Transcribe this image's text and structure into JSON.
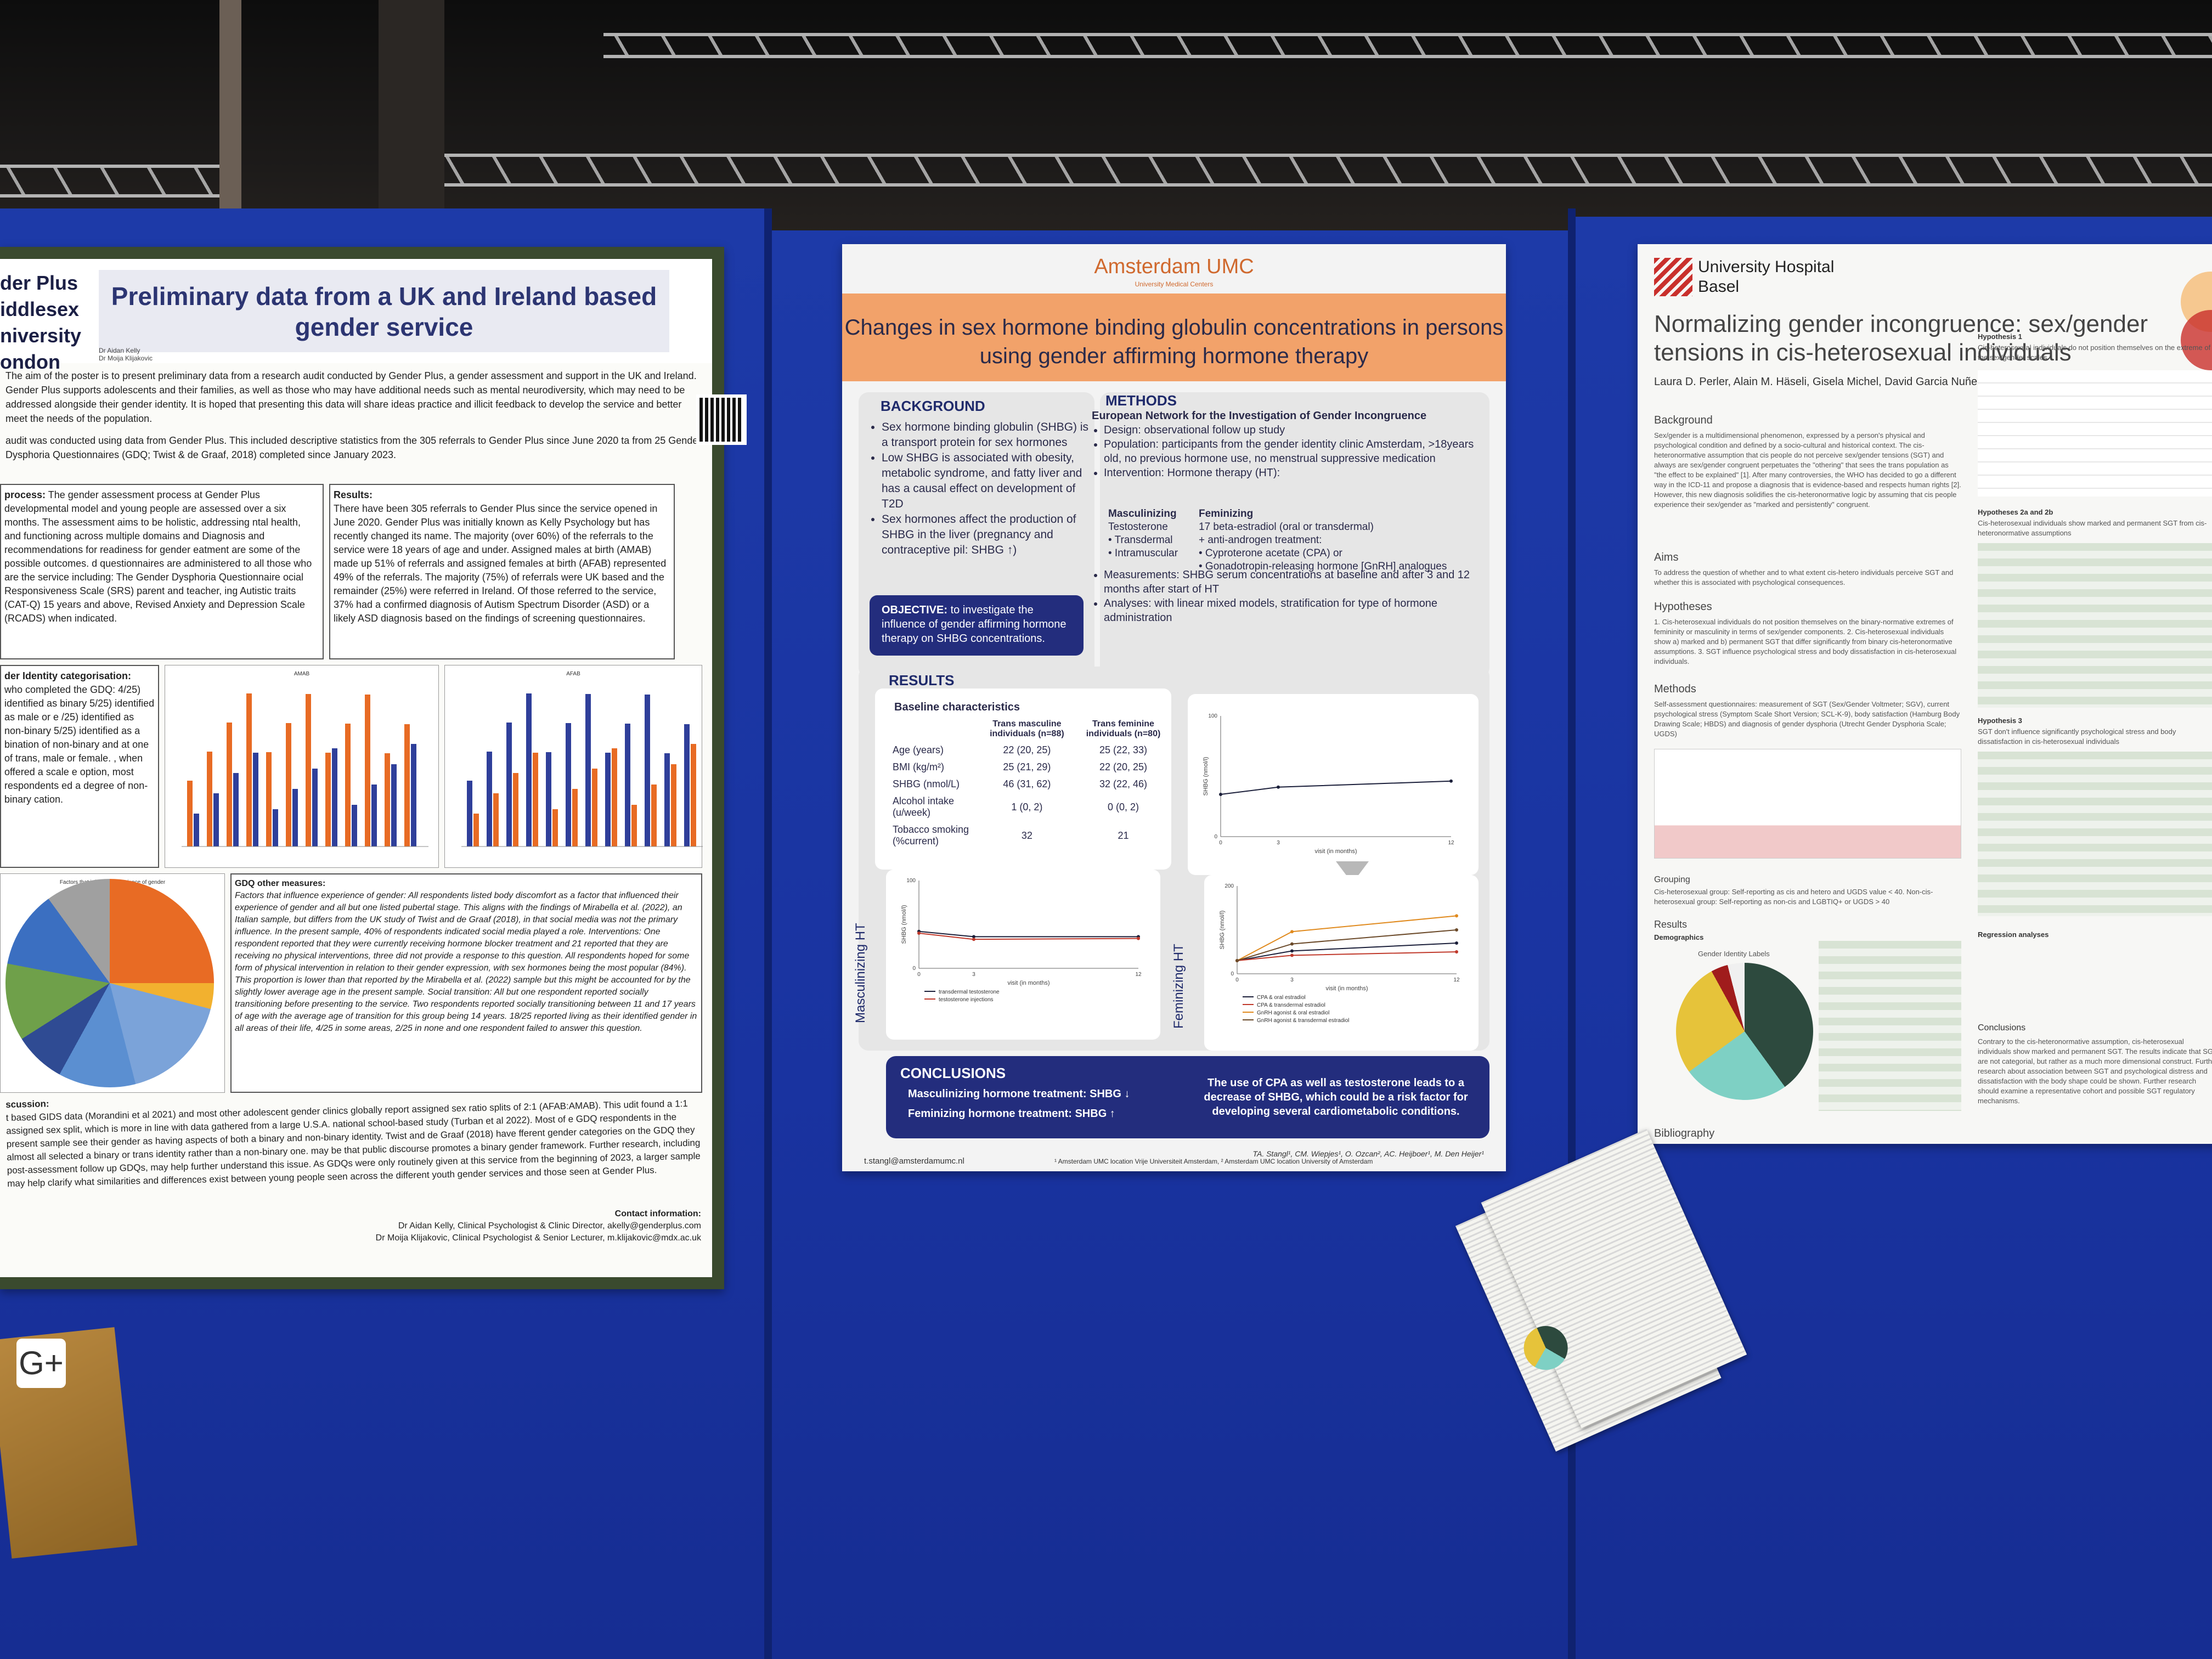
{
  "left_poster": {
    "logo_line1": "der Plus",
    "logo_line2": "iddlesex",
    "logo_line3": "niversity",
    "logo_line4": "ondon",
    "title": "Preliminary data from a UK and Ireland based gender service",
    "byline": "Dr Aidan Kelly\nDr Moija Klijakovic",
    "intro": "The aim of the poster is to present preliminary data from a research audit conducted by Gender Plus, a gender assessment and support in the UK and Ireland. Gender Plus supports adolescents and their families, as well as those who may have additional needs such as mental neurodiversity, which may need to be addressed alongside their gender identity. It is hoped that presenting this data will share ideas practice and illicit feedback to develop the service and better meet the needs of the population.",
    "method": "audit was conducted using data from Gender Plus. This included descriptive statistics from the 305 referrals to Gender Plus since June 2020 ta from 25 Gender Dysphoria Questionnaires (GDQ; Twist & de Graaf, 2018) completed since January 2023.",
    "process_heading": "process:",
    "process_text": "The gender assessment process at Gender Plus developmental model and young people are assessed over a six months. The assessment aims to be holistic, addressing ntal health, and functioning across multiple domains and Diagnosis and recommendations for readiness for gender eatment are some of the possible outcomes. d questionnaires are administered to all those who are the service including: The Gender Dysphoria Questionnaire ocial Responsiveness Scale (SRS) parent and teacher, ing Autistic traits (CAT-Q) 15 years and above, Revised Anxiety and Depression Scale (RCADS) when indicated.",
    "results_heading": "Results:",
    "results_text": "There have been 305 referrals to Gender Plus since the service opened in June 2020. Gender Plus was initially known as Kelly Psychology but has recently changed its name. The majority (over 60%) of the referrals to the service were 18 years of age and under. Assigned males at birth (AMAB) made up 51% of referrals and assigned females at birth (AFAB) represented 49% of the referrals. The majority (75%) of referrals were UK based and the remainder (25%) were referred in Ireland. Of those referred to the service, 37% had a confirmed diagnosis of Autism Spectrum Disorder (ASD) or a likely ASD diagnosis based on the findings of screening questionnaires.",
    "identity_heading": "der Identity categorisation:",
    "identity_text": "who completed the GDQ: 4/25) identified as binary 5/25) identified as male or e /25) identified as non-binary 5/25) identified as a bination of non-binary and at one of trans, male or female. , when offered a scale e option, most respondents ed a degree of non-binary cation.",
    "chart1_title": "AMAB",
    "chart2_title": "AFAB",
    "pie_title": "Factors that influence experience of gender",
    "gdq_heading": "GDQ other measures:",
    "gdq_text": "Factors that influence experience of gender: All respondents listed body discomfort as a factor that influenced their experience of gender and all but one listed pubertal stage. This aligns with the findings of Mirabella et al. (2022), an Italian sample, but differs from the UK study of Twist and de Graaf (2018), in that social media was not the primary influence. In the present sample, 40% of respondents indicated social media played a role. Interventions: One respondent reported that they were currently receiving hormone blocker treatment and 21 reported that they are receiving no physical interventions, three did not provide a response to this question. All respondents hoped for some form of physical intervention in relation to their gender expression, with sex hormones being the most popular (84%). This proportion is lower than that reported by the Mirabella et al. (2022) sample but this might be accounted for by the slightly lower average age in the present sample. Social transition: All but one respondent reported socially transitioning before presenting to the service. Two respondents reported socially transitioning between 11 and 17 years of age with the average age of transition for this group being 14 years. 18/25 reported living as their identified gender in all areas of their life, 4/25 in some areas, 2/25 in none and one respondent failed to answer this question.",
    "discussion_heading": "scussion:",
    "discussion_text": "t based GIDS data (Morandini et al 2021) and most other adolescent gender clinics globally report assigned sex ratio splits of 2:1 (AFAB:AMAB). This udit found a 1:1 assigned sex split, which is more in line with data gathered from a large U.S.A. national school-based study (Turban et al 2022). Most of e GDQ respondents in the present sample see their gender as having aspects of both a binary and non-binary identity. Twist and de Graaf (2018) have fferent gender categories on the GDQ they almost all selected a binary or trans identity rather than a non-binary one. may be that public discourse promotes a binary gender framework. Further research, including post-assessment follow up GDQs, may help further understand this issue. As GDQs were only routinely given at this service from the beginning of 2023, a larger sample may help clarify what similarities and differences exist between young people seen across the different youth gender services and those seen at Gender Plus.",
    "contact_heading": "Contact information:",
    "contact_1": "Dr Aidan Kelly, Clinical Psychologist & Clinic Director, akelly@genderplus.com",
    "contact_2": "Dr Moija Klijakovic, Clinical Psychologist & Senior Lecturer, m.klijakovic@mdx.ac.uk"
  },
  "mid_poster": {
    "logo": "Amsterdam UMC",
    "logo_sub": "University Medical Centers",
    "title": "Changes in sex hormone binding globulin concentrations in persons using gender affirming hormone therapy",
    "background_heading": "BACKGROUND",
    "background_items": [
      "Sex hormone binding globulin (SHBG) is a transport protein for sex hormones",
      "Low SHBG is associated with obesity, metabolic syndrome, and fatty liver and has a causal effect on development of T2D",
      "Sex hormones affect the production of SHBG in the liver (pregnancy and contraceptive pil: SHBG ↑)"
    ],
    "objective_label": "OBJECTIVE:",
    "objective_text": "to investigate the influence of gender affirming hormone therapy on SHBG concentrations.",
    "methods_heading": "METHODS",
    "methods_subheading": "European Network for the Investigation of Gender Incongruence",
    "methods_design": "Design: observational follow up study",
    "methods_population": "Population: participants from the gender identity clinic Amsterdam, >18years old, no previous hormone use, no menstrual suppressive medication",
    "methods_intervention": "Intervention: Hormone therapy (HT):",
    "masc_heading": "Masculinizing",
    "masc_items": [
      "Testosterone",
      "• Transdermal",
      "• Intramuscular"
    ],
    "fem_heading": "Feminizing",
    "fem_items": [
      "17 beta-estradiol (oral or transdermal)",
      "+ anti-androgen treatment:",
      "• Cyproterone acetate (CPA) or",
      "• Gonadotropin-releasing hormone [GnRH] analogues"
    ],
    "methods_measurements": "Measurements: SHBG serum concentrations at baseline and after 3 and 12 months after start of HT",
    "methods_analyses": "Analyses: with linear mixed models, stratification for type of hormone administration",
    "results_heading": "RESULTS",
    "baseline_heading": "Baseline characteristics",
    "table_header": [
      "",
      "Trans masculine individuals (n=88)",
      "Trans feminine individuals (n=80)"
    ],
    "table_rows": [
      [
        "Age (years)",
        "22 (20, 25)",
        "25 (22, 33)"
      ],
      [
        "BMI (kg/m²)",
        "25 (21, 29)",
        "22 (20, 25)"
      ],
      [
        "SHBG (nmol/L)",
        "46 (31, 62)",
        "32 (22, 46)"
      ],
      [
        "Alcohol intake (u/week)",
        "1 (0, 2)",
        "0 (0, 2)"
      ],
      [
        "Tobacco smoking (%current)",
        "32",
        "21"
      ]
    ],
    "masc_chart_label": "Masculinizing HT",
    "fem_chart_label": "Feminizing HT",
    "chart_ylabel": "SHBG (nmol/l)",
    "chart_xlabel": "visit (in months)",
    "masc_legend": [
      "transdermal testosterone",
      "testosterone injections"
    ],
    "fem_legend": [
      "CPA & oral estradiol",
      "CPA & transdermal estradiol",
      "GnRH agonist & oral estradiol",
      "GnRH agonist & transdermal estradiol"
    ],
    "conclusions_heading": "CONCLUSIONS",
    "conclusion_1": "Masculinizing hormone treatment: SHBG ↓",
    "conclusion_2": "Feminizing hormone treatment: SHBG ↑",
    "conclusion_3": "The use of CPA as well as testosterone leads to a decrease of SHBG, which could be a risk factor for developing several cardiometabolic conditions.",
    "footer_authors": "TA. Stangl¹, CM. Wiepjes¹, O. Ozcan², AC. Heijboer¹, M. Den Heijer¹",
    "footer_email": "t.stangl@amsterdamumc.nl",
    "footer_affil": "¹ Amsterdam UMC location Vrije Universiteit Amsterdam, ² Amsterdam UMC location University of Amsterdam"
  },
  "right_poster": {
    "logo": "University Hospital\nBasel",
    "title": "Normalizing gender incongruence: sex/gender tensions in cis-heterosexual individuals",
    "authors": "Laura D. Perler, Alain M. Häseli, Gisela Michel, David Garcia Nuñez",
    "background_heading": "Background",
    "background_text": "Sex/gender is a multidimensional phenomenon, expressed by a person's physical and psychological condition and defined by a socio-cultural and historical context. The cis-heteronormative assumption that cis people do not perceive sex/gender tensions (SGT) and always are sex/gender congruent perpetuates the \"othering\" that sees the trans population as \"the effect to be explained\" [1]. After many controversies, the WHO has decided to go a different way in the ICD-11 and propose a diagnosis that is evidence-based and respects human rights [2]. However, this new diagnosis solidifies the cis-heteronormative logic by assuming that cis people experience their sex/gender as \"marked and persistently\" congruent.",
    "aims_heading": "Aims",
    "aims_text": "To address the question of whether and to what extent cis-hetero individuals perceive SGT and whether this is associated with psychological consequences.",
    "hypotheses_heading": "Hypotheses",
    "hypotheses_text": "1. Cis-heterosexual individuals do not position themselves on the binary-normative extremes of femininity or masculinity in terms of sex/gender components. 2. Cis-heterosexual individuals show a) marked and b) permanent SGT that differ significantly from binary cis-heteronormative assumptions. 3. SGT influence psychological stress and body dissatisfaction in cis-heterosexual individuals.",
    "methods_heading": "Methods",
    "methods_text": "Self-assessment questionnaires: measurement of SGT (Sex/Gender Voltmeter; SGV), current psychological stress (Symptom Scale Short Version; SCL-K-9), body satisfaction (Hamburg Body Drawing Scale; HBDS) and diagnosis of gender dysphoria (Utrecht Gender Dysphoria Scale; UGDS)",
    "grouping_heading": "Grouping",
    "grouping_text": "Cis-heterosexual group: Self-reporting as cis and hetero and UGDS value < 40. Non-cis-heterosexual group: Self-reporting as non-cis and LGBTIQ+ or UGDS > 40",
    "results_heading": "Results",
    "demographics_heading": "Demographics",
    "pie_title": "Gender Identity Labels",
    "h1_heading": "Hypothesis 1",
    "h1_text": "Cis-heterosexual individuals do not position themselves on the extreme of the sex/gender scales",
    "h2_heading": "Hypotheses 2a and 2b",
    "h2_text": "Cis-heterosexual individuals show marked and permanent SGT from cis-heteronormative assumptions",
    "h3_heading": "Hypothesis 3",
    "h3_text": "SGT don't influence significantly psychological stress and body dissatisfaction in cis-heterosexual individuals",
    "regression_heading": "Regression analyses",
    "conclusions_heading": "Conclusions",
    "conclusions_text": "Contrary to the cis-heteronormative assumption, cis-heterosexual individuals show marked and permanent SGT. The results indicate that SGT are not categorial, but rather as a much more dimensional construct. Further research about association between SGT and psychological distress and dissatisfaction with the body shape could be shown. Further research should examine a representative cohort and possible SGT regulatory mechanisms.",
    "bibliography_heading": "Bibliography"
  },
  "envelope_badge": "G+",
  "colors": {
    "board_blue": "#1933a0",
    "umc_orange": "#f2a26a",
    "umc_navy": "#232d7d",
    "basel_red": "#c9302c"
  },
  "chart_data": [
    {
      "type": "line",
      "title": "",
      "xlabel": "visit (in months)",
      "ylabel": "SHBG (nmol/l)",
      "x": [
        0,
        3,
        12
      ],
      "ylim": [
        0,
        100
      ],
      "series": [
        {
          "name": "",
          "values": [
            35,
            41,
            46
          ]
        }
      ]
    },
    {
      "type": "line",
      "title": "",
      "xlabel": "visit (in months)",
      "ylabel": "SHBG (nmol/l)",
      "x": [
        0,
        3,
        12
      ],
      "ylim": [
        0,
        100
      ],
      "series": [
        {
          "name": "transdermal testosterone",
          "values": [
            42,
            36,
            36
          ]
        },
        {
          "name": "testosterone injections",
          "values": [
            40,
            33,
            34
          ]
        }
      ]
    },
    {
      "type": "line",
      "title": "",
      "xlabel": "visit (in months)",
      "ylabel": "SHBG (nmol/l)",
      "x": [
        0,
        3,
        12
      ],
      "ylim": [
        0,
        200
      ],
      "series": [
        {
          "name": "CPA & oral estradiol",
          "values": [
            30,
            52,
            70
          ]
        },
        {
          "name": "CPA & transdermal estradiol",
          "values": [
            30,
            42,
            50
          ]
        },
        {
          "name": "GnRH agonist & oral estradiol",
          "values": [
            30,
            96,
            132
          ]
        },
        {
          "name": "GnRH agonist & transdermal estradiol",
          "values": [
            30,
            68,
            100
          ]
        }
      ]
    }
  ]
}
